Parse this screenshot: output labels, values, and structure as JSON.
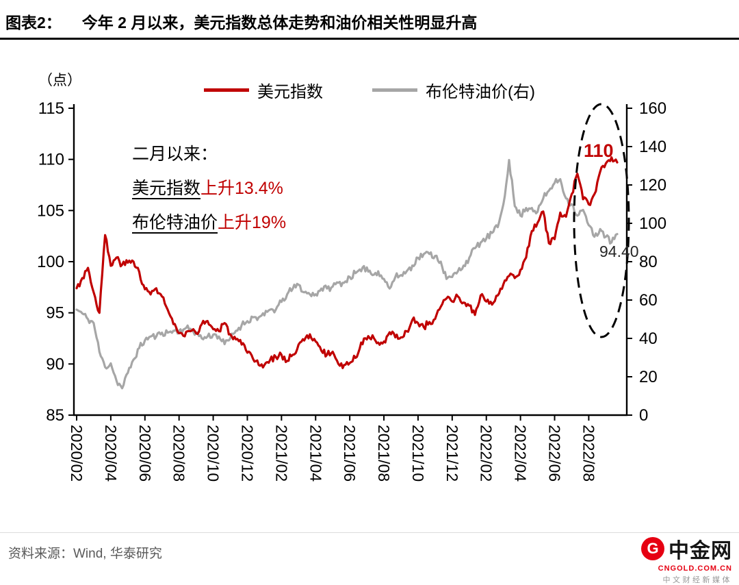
{
  "header": {
    "title_prefix": "图表2：",
    "title": "今年 2 月以来，美元指数总体走势和油价相关性明显升高"
  },
  "chart_data": {
    "type": "line",
    "unit_label": "（点）",
    "legend": [
      {
        "label": "美元指数",
        "color": "#c00000"
      },
      {
        "label": "布伦特油价(右)",
        "color": "#a6a6a6"
      }
    ],
    "left_axis": {
      "min": 85,
      "max": 115,
      "ticks": [
        115,
        110,
        105,
        100,
        95,
        90,
        85
      ]
    },
    "right_axis": {
      "min": 0,
      "max": 160,
      "ticks": [
        160,
        140,
        120,
        100,
        80,
        60,
        40,
        20,
        0
      ]
    },
    "x_tick_labels": [
      "2020/02",
      "2020/04",
      "2020/06",
      "2020/08",
      "2020/10",
      "2020/12",
      "2021/02",
      "2021/04",
      "2021/06",
      "2021/08",
      "2021/10",
      "2021/12",
      "2022/02",
      "2022/04",
      "2022/06",
      "2022/08"
    ],
    "points_per_month": 3,
    "series": [
      {
        "name": "美元指数",
        "axis": "left",
        "color": "#c00000",
        "values": [
          97.4,
          98.4,
          99.4,
          97.0,
          95.0,
          102.6,
          99.6,
          100.4,
          99.7,
          99.9,
          100.0,
          99.0,
          97.3,
          96.8,
          97.4,
          96.6,
          95.3,
          93.9,
          93.0,
          92.7,
          93.2,
          93.0,
          93.9,
          94.2,
          93.4,
          93.2,
          94.0,
          92.9,
          92.4,
          91.9,
          91.1,
          90.5,
          89.9,
          89.9,
          90.4,
          90.7,
          90.9,
          90.3,
          90.9,
          91.9,
          92.3,
          92.9,
          92.2,
          91.3,
          90.9,
          91.2,
          90.0,
          89.9,
          90.1,
          90.6,
          92.1,
          92.4,
          92.8,
          92.1,
          92.2,
          93.1,
          92.6,
          92.6,
          93.2,
          94.3,
          94.0,
          93.6,
          94.1,
          94.4,
          95.6,
          96.4,
          96.1,
          96.6,
          96.0,
          95.7,
          94.8,
          96.7,
          96.1,
          95.8,
          96.7,
          97.8,
          98.6,
          98.4,
          99.2,
          100.4,
          103.0,
          103.8,
          104.9,
          101.8,
          102.2,
          104.8,
          104.4,
          106.6,
          108.6,
          106.1,
          105.6,
          106.6,
          108.8,
          109.6,
          110.2,
          109.7
        ]
      },
      {
        "name": "布伦特油价(右)",
        "axis": "right",
        "color": "#a6a6a6",
        "values": [
          55,
          53,
          50,
          48,
          33,
          25,
          27,
          18,
          14,
          22,
          29,
          35,
          39,
          41,
          41,
          43,
          43,
          44,
          44,
          45,
          45,
          43,
          40,
          41,
          42,
          41,
          37,
          40,
          44,
          47,
          49,
          51,
          51,
          52,
          55,
          55,
          59,
          63,
          66,
          68,
          64,
          63,
          63,
          66,
          66,
          67,
          69,
          69,
          72,
          74,
          75,
          77,
          73,
          75,
          71,
          66,
          72,
          73,
          75,
          78,
          82,
          84,
          84,
          83,
          80,
          71,
          72,
          75,
          78,
          82,
          87,
          90,
          92,
          95,
          98,
          110,
          133,
          109,
          104,
          108,
          108,
          106,
          113,
          117,
          121,
          123,
          113,
          110,
          104,
          107,
          99,
          93,
          97,
          93,
          90,
          94.4
        ]
      }
    ],
    "annotations": {
      "note_title": "二月以来：",
      "line2_series": "美元指数",
      "line2_change": "上升13.4%",
      "line3_series": "布伦特油价",
      "line3_change": "上升19%",
      "usd_end_label": "110",
      "brent_end_label": "94.40"
    }
  },
  "footer": {
    "source": "资料来源：Wind, 华泰研究"
  },
  "logo": {
    "icon_letter": "G",
    "name": "中金网",
    "domain": "CNGOLD.COM.CN",
    "tagline": "中文财经新媒体"
  }
}
